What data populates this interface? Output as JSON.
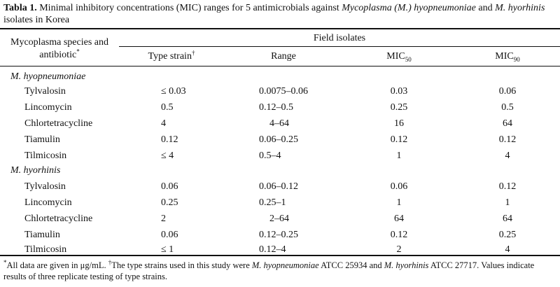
{
  "caption": {
    "label": "Tabla 1.",
    "text_1": " Minimal inhibitory concentrations (MIC) ranges for 5 antimicrobials against ",
    "species_1": "Mycoplasma (M.) hyopneumoniae",
    "text_2": " and ",
    "species_2": "M. hyorhinis",
    "text_3": " isolates in Korea"
  },
  "header": {
    "species_col": "Mycoplasma species and antibiotic",
    "species_mark": "*",
    "field_isolates": "Field isolates",
    "type_strain": "Type strain",
    "type_strain_mark": "†",
    "range": "Range",
    "mic": "MIC",
    "mic50_sub": "50",
    "mic90_sub": "90"
  },
  "sections": [
    {
      "name": "M. hyopneumoniae",
      "rows": [
        {
          "antibiotic": "Tylvalosin",
          "type_strain": "≤ 0.03",
          "range": "0.0075–0.06",
          "mic50": "0.03",
          "mic90": "0.06"
        },
        {
          "antibiotic": "Lincomycin",
          "type_strain": "0.5",
          "range": "0.12–0.5",
          "mic50": "0.25",
          "mic90": "0.5"
        },
        {
          "antibiotic": "Chlortetracycline",
          "type_strain": "4",
          "range": "4–64",
          "mic50": "16",
          "mic90": "64"
        },
        {
          "antibiotic": "Tiamulin",
          "type_strain": "0.12",
          "range": "0.06–0.25",
          "mic50": "0.12",
          "mic90": "0.12"
        },
        {
          "antibiotic": "Tilmicosin",
          "type_strain": "≤ 4",
          "range": "0.5–4",
          "mic50": "1",
          "mic90": "4"
        }
      ]
    },
    {
      "name": "M. hyorhinis",
      "rows": [
        {
          "antibiotic": "Tylvalosin",
          "type_strain": "0.06",
          "range": "0.06–0.12",
          "mic50": "0.06",
          "mic90": "0.12"
        },
        {
          "antibiotic": "Lincomycin",
          "type_strain": "0.25",
          "range": "0.25–1",
          "mic50": "1",
          "mic90": "1"
        },
        {
          "antibiotic": "Chlortetracycline",
          "type_strain": "2",
          "range": "2–64",
          "mic50": "64",
          "mic90": "64"
        },
        {
          "antibiotic": "Tiamulin",
          "type_strain": "0.06",
          "range": "0.12–0.25",
          "mic50": "0.12",
          "mic90": "0.25"
        },
        {
          "antibiotic": "Tilmicosin",
          "type_strain": "≤ 1",
          "range": "0.12–4",
          "mic50": "2",
          "mic90": "4"
        }
      ]
    }
  ],
  "footnote": {
    "mark_1": "*",
    "text_1": "All data are given in μg/mL. ",
    "mark_2": "†",
    "text_2": "The type strains used in this study were ",
    "species_1": "M. hyopneumoniae",
    "text_3": " ATCC 25934 and ",
    "species_2": "M. hyorhinis",
    "text_4": " ATCC 27717. Values indicate results of three replicate testing of type strains."
  }
}
